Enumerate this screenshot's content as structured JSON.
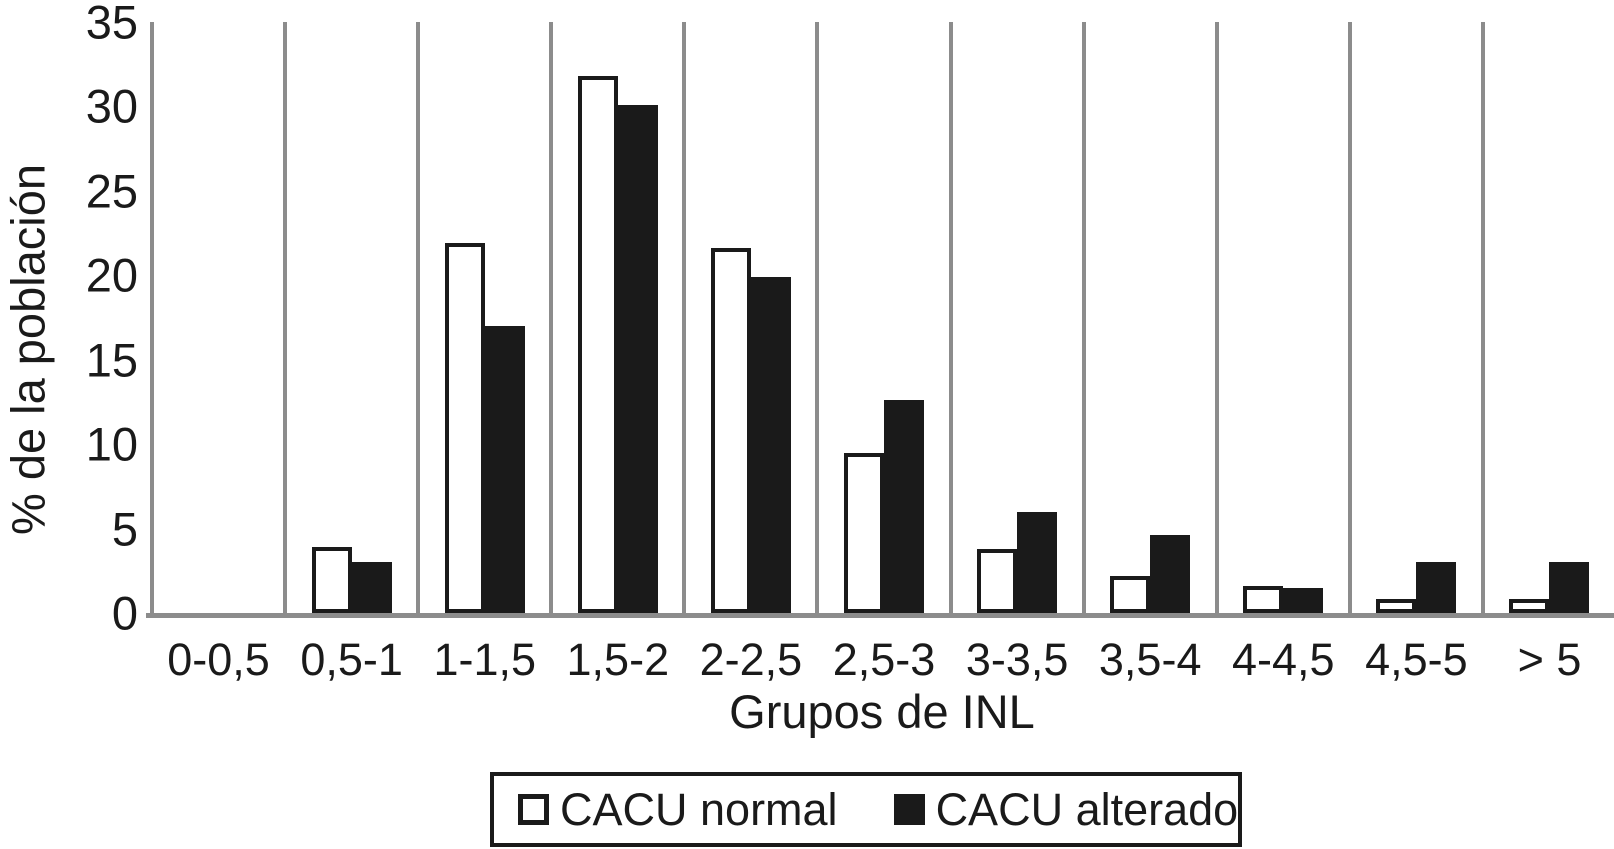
{
  "chart_data": {
    "type": "bar",
    "title": "",
    "categories": [
      "0-0,5",
      "0,5-1",
      "1-1,5",
      "1,5-2",
      "2-2,5",
      "2,5-3",
      "3-3,5",
      "3,5-4",
      "4-4,5",
      "4,5-5",
      "> 5"
    ],
    "series": [
      {
        "name": "CACU normal",
        "fill": "#ffffff",
        "border": "#1a1a1a",
        "values": [
          0,
          3.9,
          21.9,
          31.8,
          21.6,
          9.5,
          3.8,
          2.2,
          1.6,
          0.8,
          0.8
        ]
      },
      {
        "name": "CACU alterado",
        "fill": "#1a1a1a",
        "border": "#1a1a1a",
        "values": [
          0,
          3.0,
          17.0,
          30.1,
          19.9,
          12.6,
          6.0,
          4.6,
          1.5,
          3.0,
          3.0
        ]
      }
    ],
    "xlabel": "Grupos de INL",
    "ylabel": "% de la población",
    "ylim": [
      0,
      35
    ],
    "yticks": [
      0,
      5,
      10,
      15,
      20,
      25,
      30,
      35
    ],
    "grid": "vertical-gridlines",
    "legend_position": "bottom"
  },
  "colors": {
    "bar_black": "#1a1a1a",
    "gridline_gray": "#8c8c8c",
    "background": "#ffffff",
    "text": "#1a1a1a"
  }
}
